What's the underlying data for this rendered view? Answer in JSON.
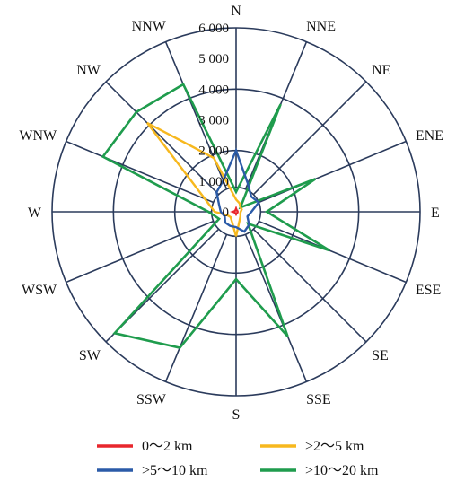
{
  "chart_data": {
    "type": "radar",
    "directions": [
      "N",
      "NNE",
      "NE",
      "ENE",
      "E",
      "ESE",
      "SE",
      "SSE",
      "S",
      "SSW",
      "SW",
      "WSW",
      "W",
      "WNW",
      "NW",
      "NNW"
    ],
    "radial_ticks": [
      "0",
      "1 000",
      "2 000",
      "3 000",
      "4 000",
      "5 000",
      "6 000"
    ],
    "rlim": [
      0,
      6000
    ],
    "grid": true,
    "legend_position": "bottom",
    "series": [
      {
        "name": "0～2 km",
        "color": "#e8272d",
        "values": [
          100,
          50,
          50,
          50,
          50,
          50,
          50,
          50,
          80,
          50,
          50,
          50,
          100,
          50,
          50,
          50
        ]
      },
      {
        "name": ">2～5 km",
        "color": "#f7b81e",
        "values": [
          400,
          300,
          200,
          200,
          150,
          150,
          200,
          300,
          800,
          350,
          250,
          300,
          700,
          1100,
          4100,
          1900
        ]
      },
      {
        "name": ">5～10 km",
        "color": "#2b5ba8",
        "values": [
          2000,
          1000,
          700,
          800,
          500,
          400,
          600,
          700,
          500,
          500,
          500,
          400,
          500,
          600,
          900,
          1100
        ]
      },
      {
        "name": ">10～20 km",
        "color": "#1f9c4d",
        "values": [
          650,
          3800,
          200,
          2800,
          1000,
          3300,
          550,
          4400,
          2200,
          4800,
          5600,
          600,
          900,
          4700,
          4600,
          4500
        ]
      }
    ]
  }
}
